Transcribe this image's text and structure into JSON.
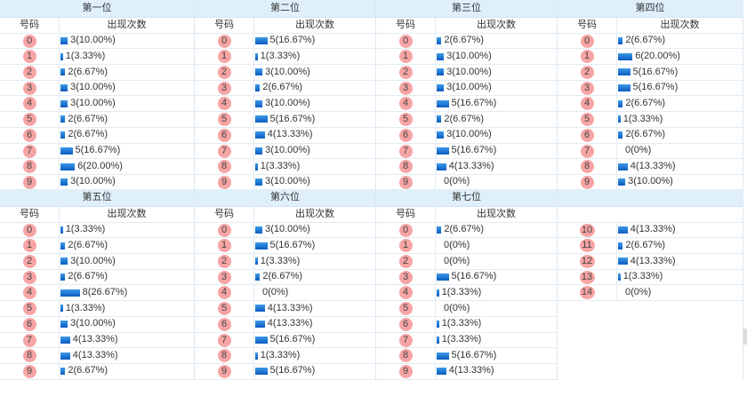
{
  "headers": {
    "number": "号码",
    "count": "出现次数"
  },
  "colors": {
    "ball": "#f7a4a4",
    "bar": "#1a70d0",
    "header_bg": "#dff0fb"
  },
  "positions": [
    {
      "title": "第一位",
      "rows": [
        [
          "0",
          3,
          "3(10.00%)"
        ],
        [
          "1",
          1,
          "1(3.33%)"
        ],
        [
          "2",
          2,
          "2(6.67%)"
        ],
        [
          "3",
          3,
          "3(10.00%)"
        ],
        [
          "4",
          3,
          "3(10.00%)"
        ],
        [
          "5",
          2,
          "2(6.67%)"
        ],
        [
          "6",
          2,
          "2(6.67%)"
        ],
        [
          "7",
          5,
          "5(16.67%)"
        ],
        [
          "8",
          6,
          "6(20.00%)"
        ],
        [
          "9",
          3,
          "3(10.00%)"
        ]
      ]
    },
    {
      "title": "第二位",
      "rows": [
        [
          "0",
          5,
          "5(16.67%)"
        ],
        [
          "1",
          1,
          "1(3.33%)"
        ],
        [
          "2",
          3,
          "3(10.00%)"
        ],
        [
          "3",
          2,
          "2(6.67%)"
        ],
        [
          "4",
          3,
          "3(10.00%)"
        ],
        [
          "5",
          5,
          "5(16.67%)"
        ],
        [
          "6",
          4,
          "4(13.33%)"
        ],
        [
          "7",
          3,
          "3(10.00%)"
        ],
        [
          "8",
          1,
          "1(3.33%)"
        ],
        [
          "9",
          3,
          "3(10.00%)"
        ]
      ]
    },
    {
      "title": "第三位",
      "rows": [
        [
          "0",
          2,
          "2(6.67%)"
        ],
        [
          "1",
          3,
          "3(10.00%)"
        ],
        [
          "2",
          3,
          "3(10.00%)"
        ],
        [
          "3",
          3,
          "3(10.00%)"
        ],
        [
          "4",
          5,
          "5(16.67%)"
        ],
        [
          "5",
          2,
          "2(6.67%)"
        ],
        [
          "6",
          3,
          "3(10.00%)"
        ],
        [
          "7",
          5,
          "5(16.67%)"
        ],
        [
          "8",
          4,
          "4(13.33%)"
        ],
        [
          "9",
          0,
          "0(0%)"
        ]
      ]
    },
    {
      "title": "第四位",
      "rows": [
        [
          "0",
          2,
          "2(6.67%)"
        ],
        [
          "1",
          6,
          "6(20.00%)"
        ],
        [
          "2",
          5,
          "5(16.67%)"
        ],
        [
          "3",
          5,
          "5(16.67%)"
        ],
        [
          "4",
          2,
          "2(6.67%)"
        ],
        [
          "5",
          1,
          "1(3.33%)"
        ],
        [
          "6",
          2,
          "2(6.67%)"
        ],
        [
          "7",
          0,
          "0(0%)"
        ],
        [
          "8",
          4,
          "4(13.33%)"
        ],
        [
          "9",
          3,
          "3(10.00%)"
        ]
      ]
    },
    {
      "title": "第五位",
      "rows": [
        [
          "0",
          1,
          "1(3.33%)"
        ],
        [
          "1",
          2,
          "2(6.67%)"
        ],
        [
          "2",
          3,
          "3(10.00%)"
        ],
        [
          "3",
          2,
          "2(6.67%)"
        ],
        [
          "4",
          8,
          "8(26.67%)"
        ],
        [
          "5",
          1,
          "1(3.33%)"
        ],
        [
          "6",
          3,
          "3(10.00%)"
        ],
        [
          "7",
          4,
          "4(13.33%)"
        ],
        [
          "8",
          4,
          "4(13.33%)"
        ],
        [
          "9",
          2,
          "2(6.67%)"
        ]
      ]
    },
    {
      "title": "第六位",
      "rows": [
        [
          "0",
          3,
          "3(10.00%)"
        ],
        [
          "1",
          5,
          "5(16.67%)"
        ],
        [
          "2",
          1,
          "1(3.33%)"
        ],
        [
          "3",
          2,
          "2(6.67%)"
        ],
        [
          "4",
          0,
          "0(0%)"
        ],
        [
          "5",
          4,
          "4(13.33%)"
        ],
        [
          "6",
          4,
          "4(13.33%)"
        ],
        [
          "7",
          5,
          "5(16.67%)"
        ],
        [
          "8",
          1,
          "1(3.33%)"
        ],
        [
          "9",
          5,
          "5(16.67%)"
        ]
      ]
    },
    {
      "title": "第七位",
      "rows": [
        [
          "0",
          2,
          "2(6.67%)"
        ],
        [
          "1",
          0,
          "0(0%)"
        ],
        [
          "2",
          0,
          "0(0%)"
        ],
        [
          "3",
          5,
          "5(16.67%)"
        ],
        [
          "4",
          1,
          "1(3.33%)"
        ],
        [
          "5",
          0,
          "0(0%)"
        ],
        [
          "6",
          1,
          "1(3.33%)"
        ],
        [
          "7",
          1,
          "1(3.33%)"
        ],
        [
          "8",
          5,
          "5(16.67%)"
        ],
        [
          "9",
          4,
          "4(13.33%)"
        ]
      ]
    },
    {
      "title": "",
      "no_subheader": true,
      "rows": [
        [
          "10",
          4,
          "4(13.33%)"
        ],
        [
          "11",
          2,
          "2(6.67%)"
        ],
        [
          "12",
          4,
          "4(13.33%)"
        ],
        [
          "13",
          1,
          "1(3.33%)"
        ],
        [
          "14",
          0,
          "0(0%)"
        ]
      ]
    }
  ]
}
